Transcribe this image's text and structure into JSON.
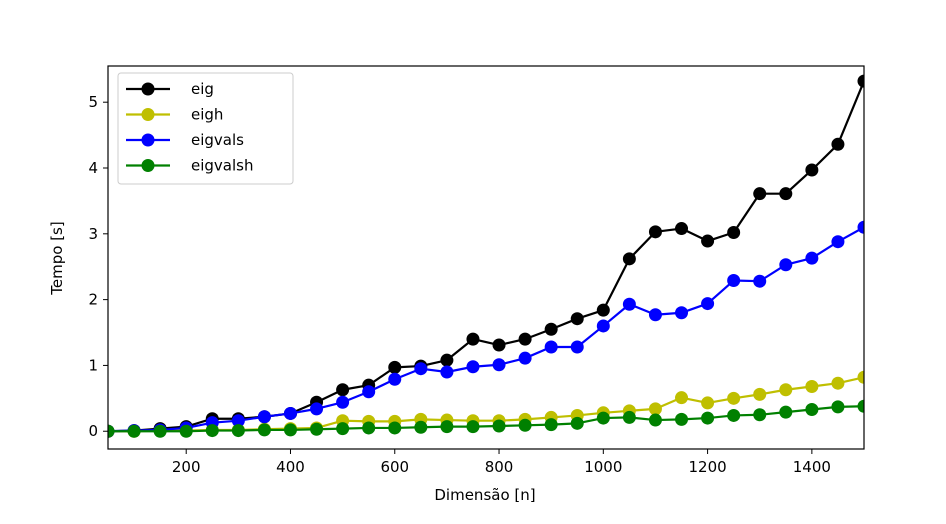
{
  "chart_data": {
    "type": "line",
    "title": "",
    "xlabel": "Dimensão [n]",
    "ylabel": "Tempo [s]",
    "xlim": [
      50,
      1500
    ],
    "ylim": [
      -0.27,
      5.55
    ],
    "xticks": [
      200,
      400,
      600,
      800,
      1000,
      1200,
      1400
    ],
    "yticks": [
      0,
      1,
      2,
      3,
      4,
      5
    ],
    "grid": false,
    "legend_position": "top-left",
    "x": [
      50,
      100,
      150,
      200,
      250,
      300,
      350,
      400,
      450,
      500,
      550,
      600,
      650,
      700,
      750,
      800,
      850,
      900,
      950,
      1000,
      1050,
      1100,
      1150,
      1200,
      1250,
      1300,
      1350,
      1400,
      1450,
      1500
    ],
    "series": [
      {
        "name": "eig",
        "color": "#000000",
        "values": [
          0.0,
          0.01,
          0.04,
          0.07,
          0.19,
          0.19,
          0.22,
          0.27,
          0.44,
          0.63,
          0.7,
          0.97,
          0.99,
          1.08,
          1.4,
          1.31,
          1.4,
          1.55,
          1.71,
          1.84,
          2.62,
          3.03,
          3.08,
          2.89,
          3.02,
          3.61,
          3.61,
          3.97,
          4.36,
          5.32
        ]
      },
      {
        "name": "eigh",
        "color": "#bfbf00",
        "values": [
          0.0,
          0.0,
          0.01,
          0.01,
          0.02,
          0.02,
          0.03,
          0.04,
          0.05,
          0.16,
          0.15,
          0.15,
          0.18,
          0.17,
          0.16,
          0.16,
          0.18,
          0.21,
          0.24,
          0.28,
          0.31,
          0.34,
          0.51,
          0.43,
          0.5,
          0.56,
          0.63,
          0.68,
          0.73,
          0.82
        ]
      },
      {
        "name": "eigvals",
        "color": "#0000ff",
        "values": [
          0.0,
          0.01,
          0.02,
          0.05,
          0.13,
          0.16,
          0.22,
          0.27,
          0.34,
          0.44,
          0.6,
          0.79,
          0.95,
          0.9,
          0.98,
          1.01,
          1.11,
          1.28,
          1.28,
          1.6,
          1.93,
          1.77,
          1.8,
          1.94,
          2.29,
          2.28,
          2.53,
          2.63,
          2.88,
          3.1
        ]
      },
      {
        "name": "eigvalsh",
        "color": "#008000",
        "values": [
          0.0,
          0.0,
          0.0,
          0.0,
          0.01,
          0.01,
          0.02,
          0.02,
          0.03,
          0.04,
          0.05,
          0.05,
          0.06,
          0.07,
          0.07,
          0.08,
          0.09,
          0.1,
          0.12,
          0.2,
          0.21,
          0.17,
          0.18,
          0.2,
          0.24,
          0.25,
          0.29,
          0.33,
          0.37,
          0.38
        ]
      }
    ]
  }
}
